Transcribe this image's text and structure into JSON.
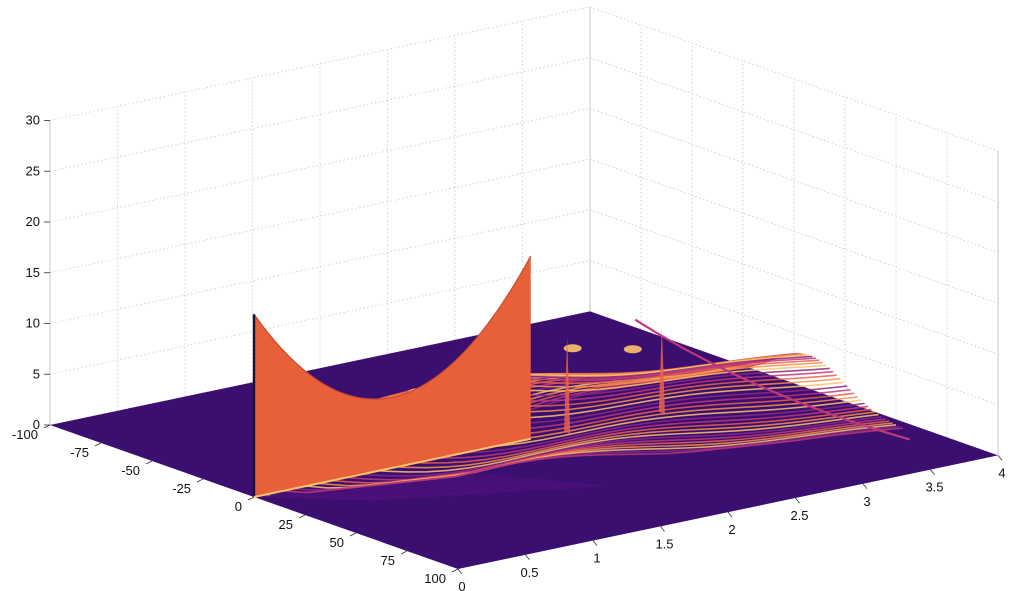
{
  "chart_data": {
    "type": "surface",
    "title": "",
    "xlabel": "",
    "ylabel": "",
    "zlabel": "",
    "x_axis": {
      "ticks": [
        -100,
        -75,
        -50,
        -25,
        0,
        25,
        50,
        75,
        100
      ],
      "labels": [
        "-100",
        "-75",
        "-50",
        "-25",
        "0",
        "25",
        "50",
        "75",
        "100"
      ],
      "range": [
        -100,
        100
      ]
    },
    "y_axis": {
      "ticks": [
        0,
        0.5,
        1,
        1.5,
        2,
        2.5,
        3,
        3.5,
        4
      ],
      "labels": [
        "0",
        "0.5",
        "1",
        "1.5",
        "2",
        "2.5",
        "3",
        "3.5",
        "4"
      ],
      "range": [
        0,
        4
      ]
    },
    "z_axis": {
      "ticks": [
        0,
        5,
        10,
        15,
        20,
        25,
        30
      ],
      "labels": [
        "0",
        "5",
        "10",
        "15",
        "20",
        "25",
        "30"
      ],
      "range": [
        0,
        30
      ]
    },
    "grid": true,
    "colormap": [
      "#3b0f70",
      "#5b1281",
      "#8c2981",
      "#c1377a",
      "#e8604d",
      "#f8904a",
      "#fec36b",
      "#fcfdbf"
    ],
    "background_color": "#3b0f70",
    "initial_profile": {
      "y": 0,
      "x_range": [
        -1.5,
        0.3
      ],
      "z_points": [
        {
          "x": -1.5,
          "z": 18
        },
        {
          "x": -0.4,
          "z": 7.5
        },
        {
          "x": 0.3,
          "z": 18
        }
      ],
      "color": "#e8603a"
    },
    "secondary_peaks": [
      {
        "y": 0.08,
        "x": 0.9,
        "z": 10.5
      },
      {
        "y": 2.3,
        "x": 1.3,
        "z": 9.5
      },
      {
        "y": 3.0,
        "x": 1.4,
        "z": 8.5
      }
    ]
  }
}
